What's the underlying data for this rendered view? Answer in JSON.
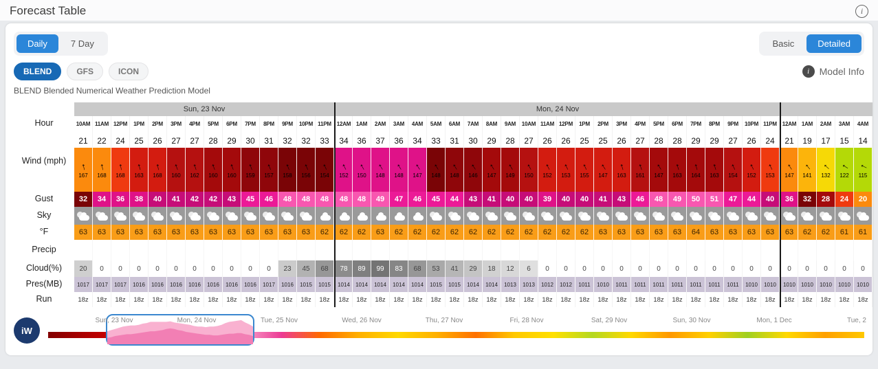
{
  "page": {
    "title": "Forecast Table"
  },
  "controls": {
    "view_tabs": [
      {
        "label": "Daily",
        "active": true
      },
      {
        "label": "7 Day",
        "active": false
      }
    ],
    "detail_tabs": [
      {
        "label": "Basic",
        "active": false
      },
      {
        "label": "Detailed",
        "active": true
      }
    ],
    "model_tabs": [
      {
        "label": "BLEND",
        "active": true
      },
      {
        "label": "GFS",
        "active": false
      },
      {
        "label": "ICON",
        "active": false
      }
    ],
    "model_info_label": "Model Info",
    "model_description": "BLEND Blended Numerical Weather Prediction Model"
  },
  "table": {
    "row_labels": [
      "Hour",
      "Wind (mph)",
      "Gust",
      "Sky",
      "°F",
      "Precip",
      "Cloud(%)",
      "Pres(MB)",
      "Run"
    ],
    "days": [
      {
        "label": "Sun, 23 Nov",
        "cols": 14
      },
      {
        "label": "Mon, 24 Nov",
        "cols": 24
      },
      {
        "label": "",
        "cols": 5
      }
    ],
    "hours": [
      "10AM",
      "11AM",
      "12PM",
      "1PM",
      "2PM",
      "3PM",
      "4PM",
      "5PM",
      "6PM",
      "7PM",
      "8PM",
      "9PM",
      "10PM",
      "11PM",
      "12AM",
      "1AM",
      "2AM",
      "3AM",
      "4AM",
      "5AM",
      "6AM",
      "7AM",
      "8AM",
      "9AM",
      "10AM",
      "11AM",
      "12PM",
      "1PM",
      "2PM",
      "3PM",
      "4PM",
      "5PM",
      "6PM",
      "7PM",
      "8PM",
      "9PM",
      "10PM",
      "11PM",
      "12AM",
      "1AM",
      "2AM",
      "3AM",
      "4AM"
    ],
    "wind_mph": [
      21,
      22,
      24,
      25,
      26,
      27,
      27,
      28,
      29,
      30,
      31,
      32,
      32,
      33,
      34,
      36,
      37,
      36,
      34,
      33,
      31,
      30,
      29,
      28,
      27,
      26,
      26,
      25,
      25,
      26,
      27,
      28,
      28,
      29,
      29,
      27,
      26,
      24,
      21,
      19,
      17,
      15,
      14
    ],
    "wind_dir_deg": [
      167,
      168,
      168,
      163,
      168,
      160,
      162,
      160,
      160,
      159,
      157,
      158,
      156,
      154,
      152,
      150,
      148,
      148,
      147,
      148,
      148,
      146,
      147,
      149,
      150,
      152,
      153,
      155,
      147,
      163,
      161,
      147,
      163,
      164,
      163,
      154,
      152,
      153,
      147,
      141,
      132,
      122,
      115
    ],
    "gust_mph": [
      32,
      34,
      36,
      38,
      40,
      41,
      42,
      42,
      43,
      45,
      46,
      48,
      48,
      48,
      48,
      48,
      49,
      47,
      46,
      45,
      44,
      43,
      41,
      40,
      40,
      39,
      40,
      40,
      41,
      43,
      46,
      48,
      49,
      50,
      51,
      47,
      44,
      40,
      36,
      32,
      28,
      24,
      20
    ],
    "sky": [
      "partly",
      "partly",
      "partly",
      "partly",
      "partly",
      "partly",
      "partly",
      "partly",
      "partly",
      "partly",
      "partly",
      "partly",
      "partly",
      "cloudy",
      "cloudy",
      "cloudy",
      "cloudy",
      "cloudy",
      "cloudy",
      "partly",
      "partly",
      "partly",
      "partly",
      "partly",
      "partly",
      "partly",
      "partly",
      "partly",
      "partly",
      "partly",
      "partly",
      "partly",
      "partly",
      "partly",
      "partly",
      "partly",
      "partly",
      "partly",
      "partly",
      "partly",
      "partly",
      "partly",
      "partly"
    ],
    "temp_f": [
      63,
      63,
      63,
      63,
      63,
      63,
      63,
      63,
      63,
      63,
      63,
      63,
      63,
      62,
      62,
      62,
      63,
      62,
      62,
      62,
      62,
      62,
      62,
      62,
      62,
      62,
      62,
      62,
      63,
      63,
      63,
      63,
      63,
      64,
      63,
      63,
      63,
      63,
      63,
      62,
      62,
      61,
      61
    ],
    "precip": [
      "",
      "",
      "",
      "",
      "",
      "",
      "",
      "",
      "",
      "",
      "",
      "",
      "",
      "",
      "",
      "",
      "",
      "",
      "",
      "",
      "",
      "",
      "",
      "",
      "",
      "",
      "",
      "",
      "",
      "",
      "",
      "",
      "",
      "",
      "",
      "",
      "",
      "",
      "",
      "",
      "",
      "",
      ""
    ],
    "cloud_pct": [
      20,
      0,
      0,
      0,
      0,
      0,
      0,
      0,
      0,
      0,
      0,
      23,
      45,
      68,
      78,
      89,
      99,
      83,
      68,
      53,
      41,
      29,
      18,
      12,
      6,
      0,
      0,
      0,
      0,
      0,
      0,
      0,
      0,
      0,
      0,
      0,
      0,
      0,
      0,
      0,
      0,
      0,
      0
    ],
    "pressure_mb": [
      1017,
      1017,
      1017,
      1016,
      1016,
      1016,
      1016,
      1016,
      1016,
      1016,
      1017,
      1016,
      1015,
      1015,
      1014,
      1014,
      1014,
      1014,
      1014,
      1015,
      1015,
      1014,
      1014,
      1013,
      1013,
      1012,
      1012,
      1011,
      1010,
      1011,
      1011,
      1011,
      1011,
      1011,
      1011,
      1011,
      1010,
      1010,
      1010,
      1010,
      1010,
      1010,
      1010
    ],
    "model_run": "18z"
  },
  "timeline": {
    "logo_text": "iW",
    "day_labels": [
      "Sun, 23 Nov",
      "Mon, 24 Nov",
      "Tue, 25 Nov",
      "Wed, 26 Nov",
      "Thu, 27 Nov",
      "Fri, 28 Nov",
      "Sat, 29 Nov",
      "Sun, 30 Nov",
      "Mon, 1 Dec",
      "Tue, 2"
    ],
    "strip_colors": [
      "#820000",
      "#b00000",
      "#d80000",
      "#e2006e",
      "#f06ab0",
      "#f8a4cc",
      "#ec3a94",
      "#ff6a00",
      "#ffb000",
      "#ffd800",
      "#ffb000",
      "#ff7000",
      "#ffc800",
      "#ffe000",
      "#b4d820",
      "#ffd800",
      "#ff9800",
      "#ffd000",
      "#a0d020",
      "#ffd800",
      "#ffa000",
      "#ffc800"
    ]
  },
  "colors": {
    "accent_blue": "#2b86d9",
    "model_active_blue": "#1769b5",
    "selection_border": "#3a87cf"
  }
}
